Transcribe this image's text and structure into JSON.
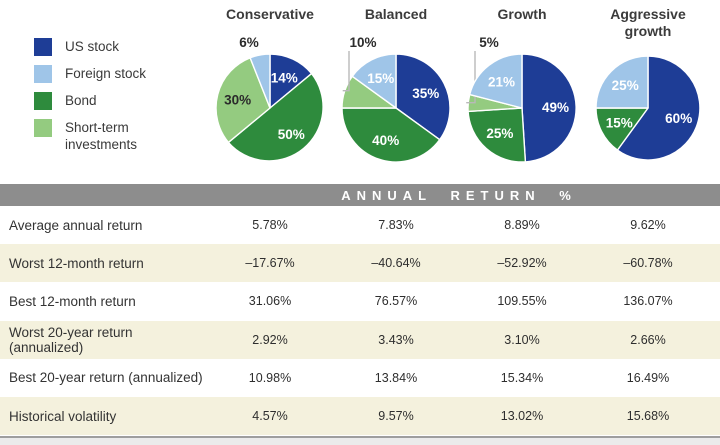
{
  "legend": {
    "items": [
      {
        "label": "US stock",
        "color": "#1e3d96"
      },
      {
        "label": "Foreign stock",
        "color": "#9fc5e8"
      },
      {
        "label": "Bond",
        "color": "#2e8b3d"
      },
      {
        "label": "Short-term investments",
        "color": "#94cb80"
      }
    ]
  },
  "table_header": "ANNUAL RETURN %",
  "colors": {
    "header_bar": "#8d8d8d",
    "header_text": "#ffffff",
    "row_beige": "#f4f1dd",
    "row_white": "#ffffff",
    "slice_stroke": "#ffffff",
    "leader_line": "#b9b9b9",
    "label_dark": "#2b2b2b",
    "label_light": "#ffffff",
    "bottom_rule": "#9e9e9e",
    "bottom_strip": "#ebebeb"
  },
  "chart_data": {
    "type": "pie",
    "note": "Four asset-allocation pies; slices listed clockwise from 12 o'clock; values are percents.",
    "legend_position": "left",
    "pies": [
      {
        "title": "Conservative",
        "slices": [
          {
            "asset": "US stock",
            "value": 14,
            "label": "14%",
            "placement": "inside",
            "tone": "light"
          },
          {
            "asset": "Bond",
            "value": 50,
            "label": "50%",
            "placement": "inside",
            "tone": "light"
          },
          {
            "asset": "Short-term investments",
            "value": 30,
            "label": "30%",
            "placement": "inside",
            "tone": "dark"
          },
          {
            "asset": "Foreign stock",
            "value": 6,
            "label": "6%",
            "placement": "outside",
            "leader": false
          }
        ]
      },
      {
        "title": "Balanced",
        "slices": [
          {
            "asset": "US stock",
            "value": 35,
            "label": "35%",
            "placement": "inside",
            "tone": "light"
          },
          {
            "asset": "Bond",
            "value": 40,
            "label": "40%",
            "placement": "inside",
            "tone": "light"
          },
          {
            "asset": "Short-term investments",
            "value": 10,
            "label": "10%",
            "placement": "outside",
            "leader": true
          },
          {
            "asset": "Foreign stock",
            "value": 15,
            "label": "15%",
            "placement": "inside",
            "tone": "light"
          }
        ]
      },
      {
        "title": "Growth",
        "slices": [
          {
            "asset": "US stock",
            "value": 49,
            "label": "49%",
            "placement": "inside",
            "tone": "light"
          },
          {
            "asset": "Bond",
            "value": 25,
            "label": "25%",
            "placement": "inside",
            "tone": "light"
          },
          {
            "asset": "Short-term investments",
            "value": 5,
            "label": "5%",
            "placement": "outside",
            "leader": true
          },
          {
            "asset": "Foreign stock",
            "value": 21,
            "label": "21%",
            "placement": "inside",
            "tone": "light"
          }
        ]
      },
      {
        "title": "Aggressive growth",
        "slices": [
          {
            "asset": "US stock",
            "value": 60,
            "label": "60%",
            "placement": "inside",
            "tone": "light"
          },
          {
            "asset": "Bond",
            "value": 15,
            "label": "15%",
            "placement": "inside",
            "tone": "light"
          },
          {
            "asset": "Foreign stock",
            "value": 25,
            "label": "25%",
            "placement": "inside",
            "tone": "light"
          }
        ]
      }
    ],
    "table": {
      "header": "ANNUAL RETURN %",
      "columns": [
        "Conservative",
        "Balanced",
        "Growth",
        "Aggressive growth"
      ],
      "rows": [
        {
          "label": "Average annual return",
          "values": [
            "5.78%",
            "7.83%",
            "8.89%",
            "9.62%"
          ]
        },
        {
          "label": "Worst 12-month return",
          "values": [
            "–17.67%",
            "–40.64%",
            "–52.92%",
            "–60.78%"
          ]
        },
        {
          "label": "Best 12-month return",
          "values": [
            "31.06%",
            "76.57%",
            "109.55%",
            "136.07%"
          ]
        },
        {
          "label": "Worst 20-year return (annualized)",
          "values": [
            "2.92%",
            "3.43%",
            "3.10%",
            "2.66%"
          ]
        },
        {
          "label": "Best 20-year return (annualized)",
          "values": [
            "10.98%",
            "13.84%",
            "15.34%",
            "16.49%"
          ]
        },
        {
          "label": "Historical volatility",
          "values": [
            "4.57%",
            "9.57%",
            "13.02%",
            "15.68%"
          ]
        }
      ]
    }
  }
}
